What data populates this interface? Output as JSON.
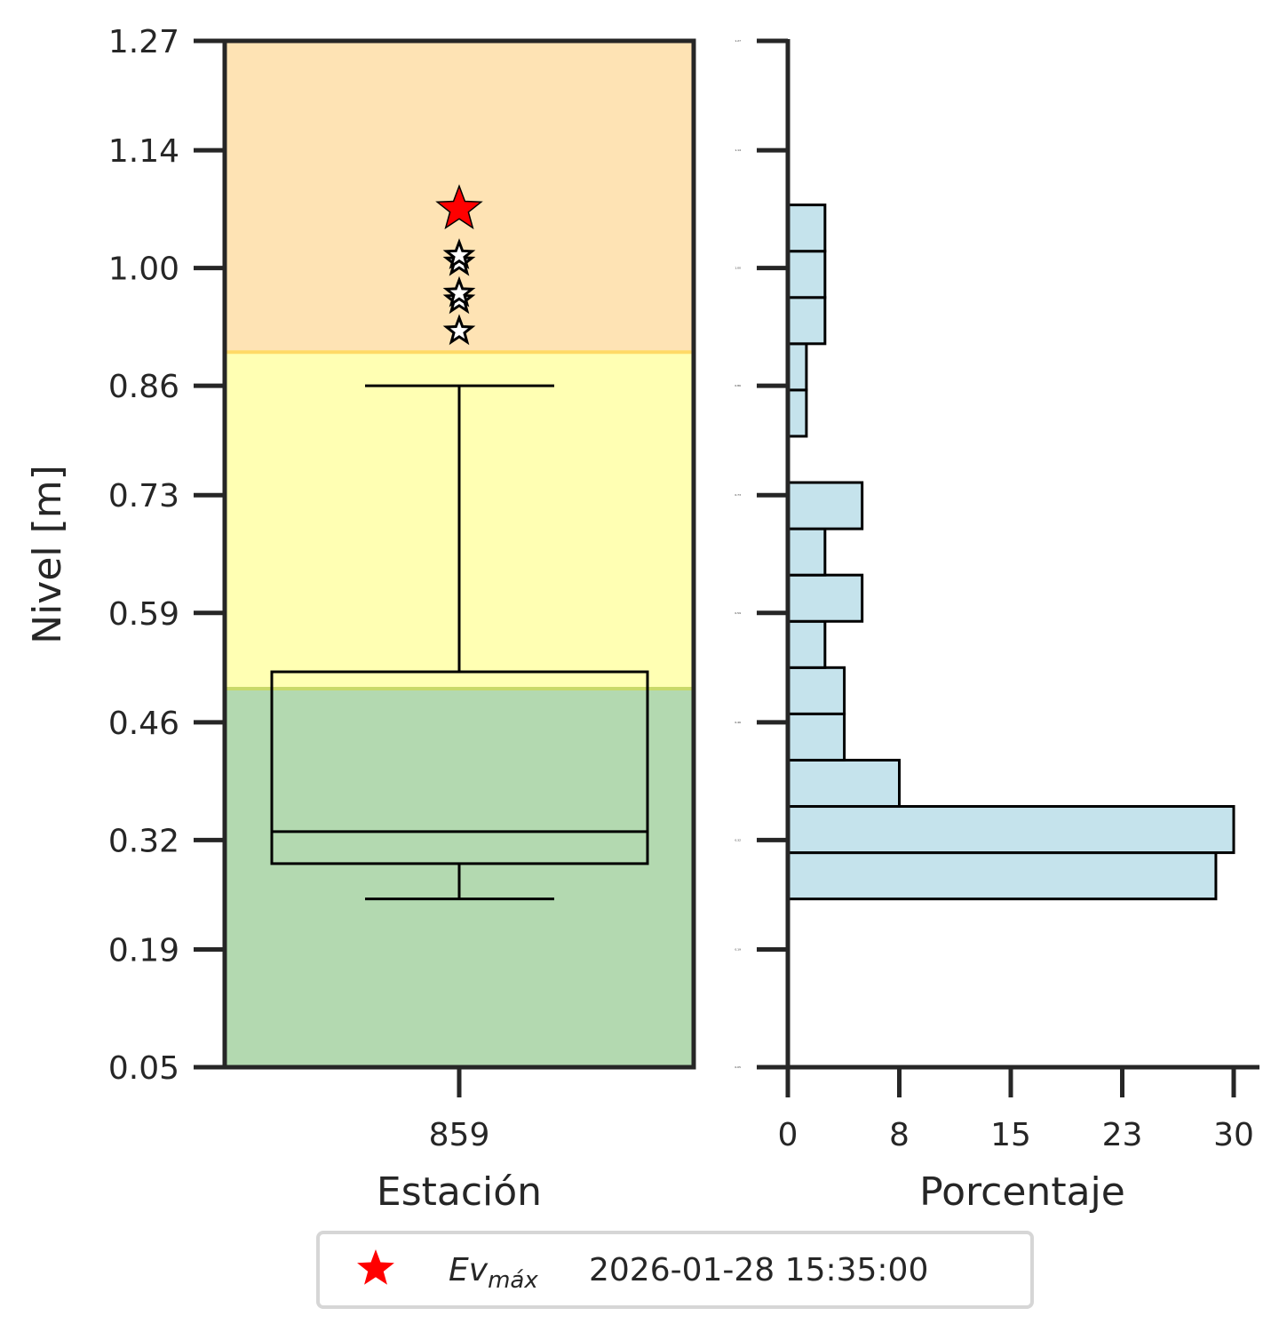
{
  "chart_data": [
    {
      "type": "box",
      "xlabel": "Estación",
      "ylabel": "Nivel [m]",
      "ylim": [
        0.05,
        1.27
      ],
      "yticks": [
        "0.05",
        "0.19",
        "0.32",
        "0.46",
        "0.59",
        "0.73",
        "0.86",
        "1.00",
        "1.14",
        "1.27"
      ],
      "categories": [
        "859"
      ],
      "bands": [
        {
          "from": 0.05,
          "to": 0.5,
          "color": "#b3d9b0"
        },
        {
          "from": 0.5,
          "to": 0.9,
          "color": "#ffffb3"
        },
        {
          "from": 0.9,
          "to": 1.27,
          "color": "#fee3b4"
        }
      ],
      "box": {
        "whisker_low": 0.25,
        "q1": 0.292,
        "median": 0.33,
        "q3": 0.52,
        "whisker_high": 0.86
      },
      "outliers": [
        0.925,
        0.962,
        0.97,
        1.007,
        1.015
      ],
      "max_event": {
        "value": 1.07,
        "color": "#ff0000"
      }
    },
    {
      "type": "bar",
      "orientation": "horizontal",
      "xlabel": "Porcentaje",
      "xlim": [
        0,
        31
      ],
      "xticks": [
        "0",
        "8",
        "15",
        "23",
        "30"
      ],
      "ylim": [
        0.05,
        1.27
      ],
      "ytick_labels": [
        "0.05",
        "0.19",
        "0.32",
        "0.46",
        "0.59",
        "0.73",
        "0.86",
        "1.00",
        "1.14",
        "1.27"
      ],
      "bar_color": "#c5e3ec",
      "bins": [
        {
          "from": 0.25,
          "to": 0.305,
          "value": 28.8
        },
        {
          "from": 0.305,
          "to": 0.36,
          "value": 30.0
        },
        {
          "from": 0.36,
          "to": 0.415,
          "value": 7.5
        },
        {
          "from": 0.415,
          "to": 0.47,
          "value": 3.8
        },
        {
          "from": 0.47,
          "to": 0.525,
          "value": 3.8
        },
        {
          "from": 0.525,
          "to": 0.58,
          "value": 2.5
        },
        {
          "from": 0.58,
          "to": 0.635,
          "value": 5.0
        },
        {
          "from": 0.635,
          "to": 0.69,
          "value": 2.5
        },
        {
          "from": 0.69,
          "to": 0.745,
          "value": 5.0
        },
        {
          "from": 0.745,
          "to": 0.8,
          "value": 0
        },
        {
          "from": 0.8,
          "to": 0.855,
          "value": 1.25
        },
        {
          "from": 0.855,
          "to": 0.91,
          "value": 1.25
        },
        {
          "from": 0.91,
          "to": 0.965,
          "value": 2.5
        },
        {
          "from": 0.965,
          "to": 1.02,
          "value": 2.5
        },
        {
          "from": 1.02,
          "to": 1.075,
          "value": 2.5
        }
      ]
    }
  ],
  "legend": {
    "label_main": "Ev",
    "label_sub": "máx",
    "date": "2026-01-28 15:35:00",
    "marker_color": "#ff0000",
    "position": "bottom-center"
  }
}
